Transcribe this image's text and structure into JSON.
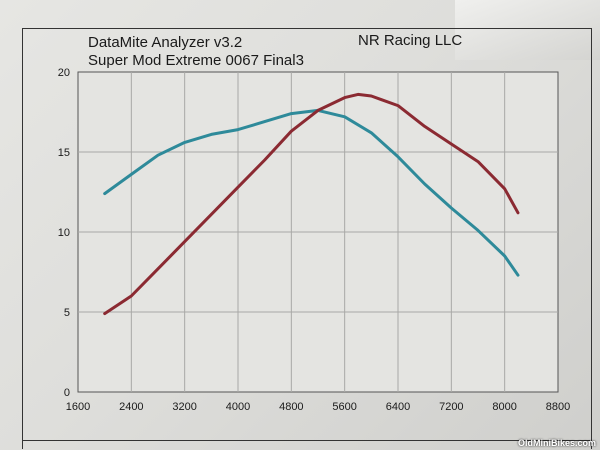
{
  "chart_data": {
    "type": "line",
    "title": "DataMite Analyzer v3.2",
    "subtitle": "Super Mod Extreme 0067 Final3",
    "company": "NR Racing LLC",
    "xlabel": "",
    "ylabel": "",
    "xlim": [
      1600,
      8800
    ],
    "ylim": [
      0,
      20
    ],
    "x_ticks": [
      1600,
      2400,
      3200,
      4000,
      4800,
      5600,
      6400,
      7200,
      8000,
      8800
    ],
    "y_ticks": [
      0,
      5,
      10,
      15,
      20
    ],
    "grid": true,
    "series": [
      {
        "color": "#2e8a9a",
        "x": [
          2000,
          2400,
          2800,
          3200,
          3600,
          4000,
          4400,
          4800,
          5200,
          5600,
          6000,
          6400,
          6800,
          7200,
          7600,
          8000,
          8200
        ],
        "y": [
          12.4,
          13.6,
          14.8,
          15.6,
          16.1,
          16.4,
          16.9,
          17.4,
          17.6,
          17.2,
          16.2,
          14.7,
          13.0,
          11.5,
          10.1,
          8.5,
          7.3
        ]
      },
      {
        "color": "#8b2a32",
        "x": [
          2000,
          2400,
          2800,
          3200,
          3600,
          4000,
          4400,
          4800,
          5200,
          5600,
          5800,
          6000,
          6400,
          6800,
          7200,
          7600,
          8000,
          8200
        ],
        "y": [
          4.9,
          6.0,
          7.7,
          9.4,
          11.1,
          12.8,
          14.5,
          16.3,
          17.6,
          18.4,
          18.6,
          18.5,
          17.9,
          16.6,
          15.5,
          14.4,
          12.7,
          11.2
        ]
      }
    ]
  },
  "watermark": "OldMiniBikes.com"
}
